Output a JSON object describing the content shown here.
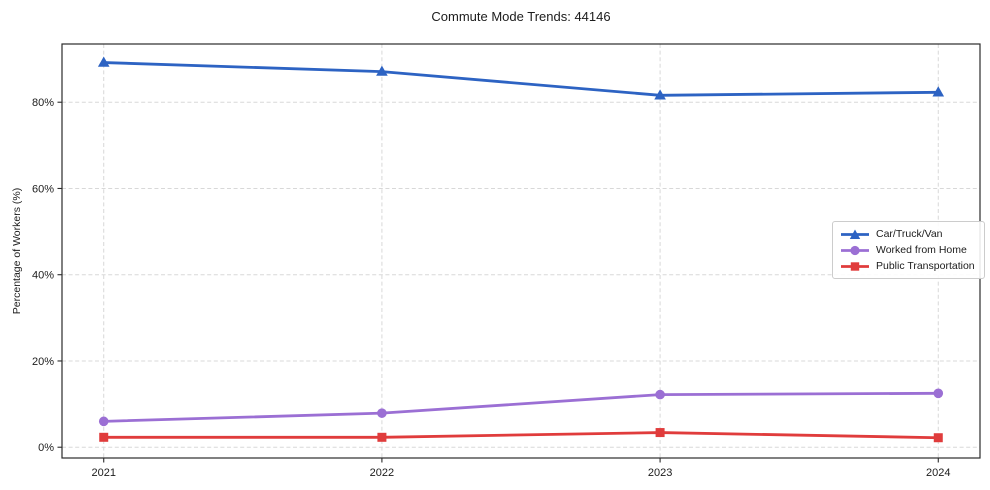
{
  "chart_data": {
    "type": "line",
    "title": "Commute Mode Trends: 44146",
    "xlabel": "",
    "ylabel": "Percentage of Workers (%)",
    "x": [
      2021,
      2022,
      2023,
      2024
    ],
    "xtick_labels": [
      "2021",
      "2022",
      "2023",
      "2024"
    ],
    "yticks": [
      {
        "value": 0,
        "label": "0%"
      },
      {
        "value": 20,
        "label": "20%"
      },
      {
        "value": 40,
        "label": "40%"
      },
      {
        "value": 60,
        "label": "60%"
      },
      {
        "value": 80,
        "label": "80%"
      }
    ],
    "xlim": [
      2020.85,
      2024.15
    ],
    "ylim": [
      -2.5,
      93.5
    ],
    "grid": true,
    "grid_style": "dashed",
    "legend_position": "center-right",
    "series": [
      {
        "id": "car-truck-van",
        "name": "Car/Truck/Van",
        "color": "#2d63c3",
        "marker": "triangle",
        "values": [
          89.2,
          87.1,
          81.6,
          82.3
        ]
      },
      {
        "id": "worked-from-home",
        "name": "Worked from Home",
        "color": "#9b6fd4",
        "marker": "circle",
        "values": [
          6.0,
          7.9,
          12.2,
          12.5
        ]
      },
      {
        "id": "public-transportation",
        "name": "Public Transportation",
        "color": "#e03c3c",
        "marker": "square",
        "values": [
          2.3,
          2.3,
          3.4,
          2.2
        ]
      }
    ],
    "colors": {
      "background": "#ffffff",
      "grid": "#d8d8d8",
      "spine": "#2b2b2b",
      "text": "#1c1c1c",
      "legend_border": "#cccccc"
    }
  }
}
